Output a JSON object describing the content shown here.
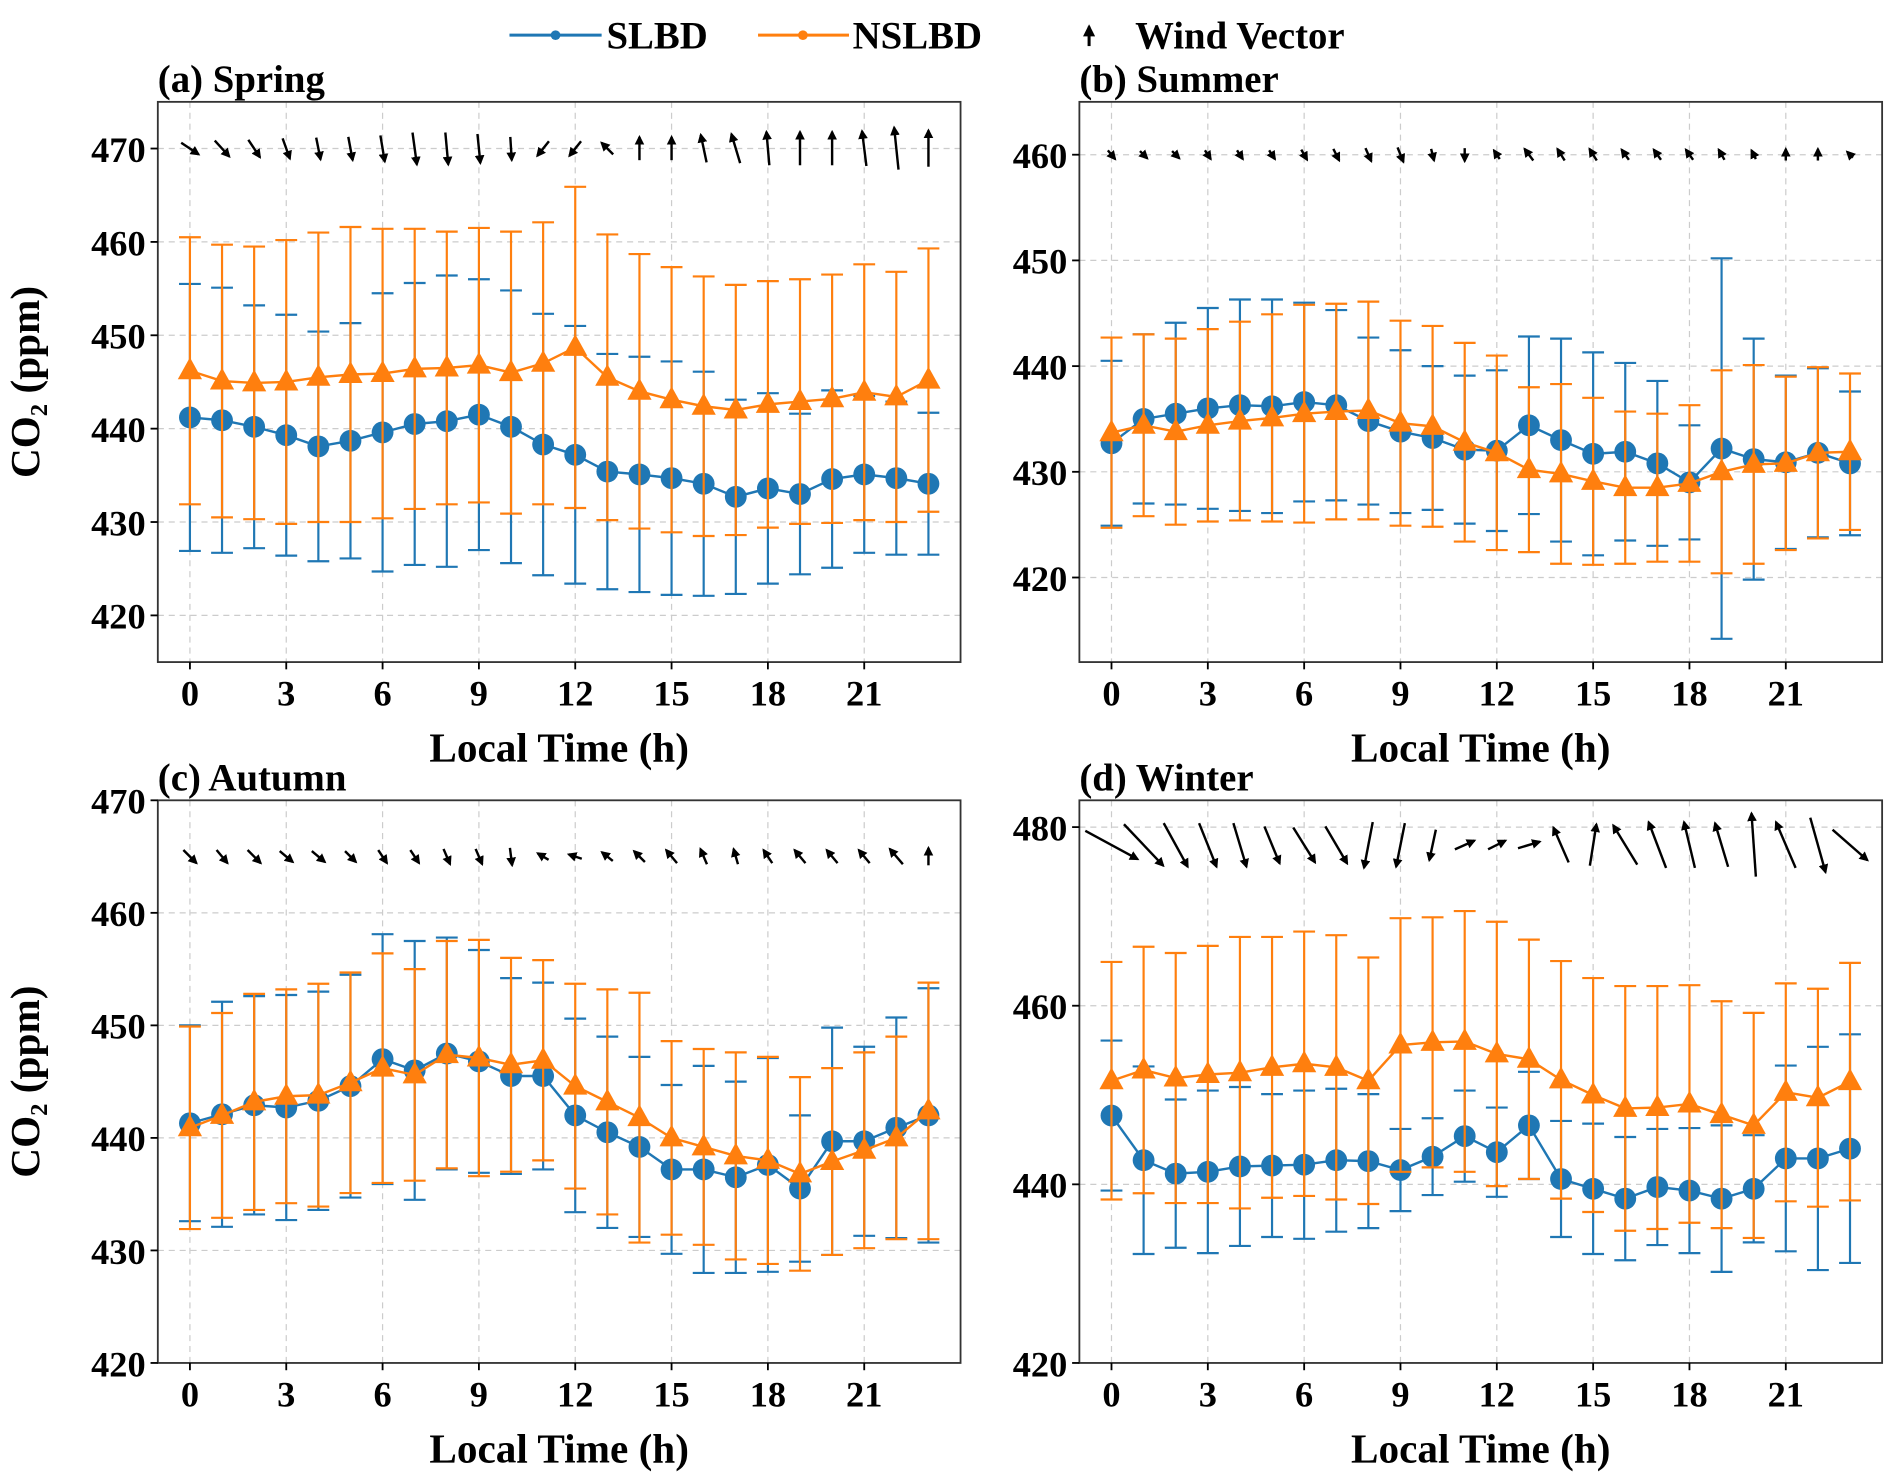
{
  "legend": {
    "items": [
      {
        "label": "SLBD",
        "color": "#1f77b4",
        "marker": "circle"
      },
      {
        "label": "NSLBD",
        "color": "#ff7f0e",
        "marker": "triangle"
      },
      {
        "label": "Wind Vector",
        "color": "#000000",
        "marker": "arrow"
      }
    ],
    "placement": "top-center"
  },
  "chart_data": [
    {
      "type": "line",
      "title": "(a) Spring",
      "xlabel": "Local Time (h)",
      "ylabel": "CO₂ (ppm)",
      "xticks": [
        0,
        3,
        6,
        9,
        12,
        15,
        18,
        21
      ],
      "yticks": [
        420,
        430,
        440,
        450,
        460,
        470
      ],
      "ylim": [
        415,
        475
      ],
      "xlim": [
        -1,
        24
      ],
      "grid": true,
      "x": [
        0,
        1,
        2,
        3,
        4,
        5,
        6,
        7,
        8,
        9,
        10,
        11,
        12,
        13,
        14,
        15,
        16,
        17,
        18,
        19,
        20,
        21,
        22,
        23
      ],
      "series": [
        {
          "name": "SLBD",
          "values": [
            441.2,
            440.9,
            440.2,
            439.3,
            438.1,
            438.7,
            439.6,
            440.5,
            440.8,
            441.5,
            440.2,
            438.3,
            437.2,
            435.4,
            435.1,
            434.7,
            434.1,
            432.7,
            433.6,
            433.0,
            434.6,
            435.1,
            434.7,
            434.1
          ],
          "err": [
            14.3,
            14.2,
            13.0,
            12.9,
            12.3,
            12.6,
            14.9,
            15.1,
            15.6,
            14.5,
            14.6,
            14.0,
            13.8,
            12.6,
            12.6,
            12.5,
            12.0,
            10.4,
            10.2,
            8.6,
            9.5,
            8.4,
            8.2,
            7.6
          ]
        },
        {
          "name": "NSLBD",
          "values": [
            446.2,
            445.1,
            444.9,
            445.0,
            445.5,
            445.8,
            445.9,
            446.4,
            446.5,
            446.8,
            446.0,
            447.0,
            448.7,
            445.5,
            444.0,
            443.1,
            442.4,
            442.0,
            442.6,
            442.9,
            443.2,
            443.9,
            443.4,
            445.2
          ],
          "err": [
            14.3,
            14.6,
            14.6,
            15.2,
            15.5,
            15.8,
            15.5,
            15.0,
            14.6,
            14.7,
            15.1,
            15.1,
            17.2,
            15.3,
            14.7,
            14.2,
            13.9,
            13.4,
            13.2,
            13.1,
            13.3,
            13.7,
            13.4,
            14.1
          ]
        }
      ],
      "wind": [
        [
          1.2,
          -0.8
        ],
        [
          1.0,
          -1.1
        ],
        [
          0.8,
          -1.2
        ],
        [
          0.5,
          -1.4
        ],
        [
          0.3,
          -1.5
        ],
        [
          0.3,
          -1.6
        ],
        [
          0.3,
          -1.8
        ],
        [
          0.3,
          -2.2
        ],
        [
          0.2,
          -2.2
        ],
        [
          0.2,
          -2.0
        ],
        [
          0.1,
          -1.6
        ],
        [
          -0.8,
          -1.0
        ],
        [
          -0.8,
          -1.0
        ],
        [
          -0.8,
          0.8
        ],
        [
          0,
          1.6
        ],
        [
          0,
          1.6
        ],
        [
          -0.4,
          1.9
        ],
        [
          -0.6,
          2.0
        ],
        [
          -0.2,
          2.3
        ],
        [
          0,
          2.3
        ],
        [
          0,
          2.3
        ],
        [
          -0.3,
          2.4
        ],
        [
          -0.3,
          2.9
        ],
        [
          0,
          2.5
        ]
      ]
    },
    {
      "type": "line",
      "title": "(b) Summer",
      "xlabel": "Local Time (h)",
      "ylabel": "",
      "xticks": [
        0,
        3,
        6,
        9,
        12,
        15,
        18,
        21
      ],
      "yticks": [
        420,
        430,
        440,
        450,
        460
      ],
      "ylim": [
        412,
        465
      ],
      "xlim": [
        -1,
        24
      ],
      "grid": true,
      "x": [
        0,
        1,
        2,
        3,
        4,
        5,
        6,
        7,
        8,
        9,
        10,
        11,
        12,
        13,
        14,
        15,
        16,
        17,
        18,
        19,
        20,
        21,
        22,
        23
      ],
      "series": [
        {
          "name": "SLBD",
          "values": [
            432.7,
            435.0,
            435.5,
            436.0,
            436.3,
            436.2,
            436.6,
            436.3,
            434.8,
            433.8,
            433.2,
            432.1,
            432.0,
            434.4,
            433.0,
            431.7,
            431.9,
            430.8,
            429.0,
            432.2,
            431.2,
            430.9,
            431.8,
            430.8
          ],
          "err": [
            7.8,
            8.0,
            8.6,
            9.5,
            10.0,
            10.1,
            9.4,
            9.0,
            7.9,
            7.7,
            6.8,
            7.0,
            7.6,
            8.4,
            9.6,
            9.6,
            8.4,
            7.8,
            5.4,
            18.0,
            11.4,
            8.2,
            8.0,
            6.8
          ]
        },
        {
          "name": "NSLBD",
          "values": [
            433.7,
            434.4,
            433.8,
            434.4,
            434.8,
            435.1,
            435.5,
            435.7,
            435.8,
            434.6,
            434.3,
            432.8,
            431.8,
            430.2,
            429.8,
            429.1,
            428.5,
            428.5,
            428.9,
            430.0,
            430.7,
            430.8,
            431.8,
            431.9
          ],
          "err": [
            9.0,
            8.6,
            8.8,
            9.1,
            9.4,
            9.8,
            10.3,
            10.2,
            10.3,
            9.7,
            9.5,
            9.4,
            9.2,
            7.8,
            8.5,
            7.9,
            7.2,
            7.0,
            7.4,
            9.6,
            9.4,
            8.2,
            8.1,
            7.4
          ]
        }
      ],
      "wind": [
        [
          0.5,
          -0.6
        ],
        [
          0.5,
          -0.5
        ],
        [
          0.5,
          -0.5
        ],
        [
          0.4,
          -0.6
        ],
        [
          0.4,
          -0.6
        ],
        [
          0.4,
          -0.6
        ],
        [
          0.4,
          -0.7
        ],
        [
          0.4,
          -0.8
        ],
        [
          0.4,
          -0.9
        ],
        [
          0.4,
          -1.0
        ],
        [
          0.2,
          -0.8
        ],
        [
          0,
          -0.9
        ],
        [
          -0.4,
          0.6
        ],
        [
          -0.6,
          0.8
        ],
        [
          -0.5,
          0.8
        ],
        [
          -0.5,
          0.8
        ],
        [
          -0.5,
          0.7
        ],
        [
          -0.5,
          0.7
        ],
        [
          -0.5,
          0.7
        ],
        [
          -0.4,
          0.7
        ],
        [
          -0.3,
          0.6
        ],
        [
          0,
          0.8
        ],
        [
          0,
          0.8
        ],
        [
          -0.4,
          0.4
        ]
      ]
    },
    {
      "type": "line",
      "title": "(c) Autumn",
      "xlabel": "Local Time (h)",
      "ylabel": "CO₂ (ppm)",
      "xticks": [
        0,
        3,
        6,
        9,
        12,
        15,
        18,
        21
      ],
      "yticks": [
        420,
        430,
        440,
        450,
        460,
        470
      ],
      "ylim": [
        420,
        470
      ],
      "xlim": [
        -1,
        24
      ],
      "grid": true,
      "x": [
        0,
        1,
        2,
        3,
        4,
        5,
        6,
        7,
        8,
        9,
        10,
        11,
        12,
        13,
        14,
        15,
        16,
        17,
        18,
        19,
        20,
        21,
        22,
        23
      ],
      "series": [
        {
          "name": "SLBD",
          "values": [
            441.3,
            442.1,
            442.9,
            442.7,
            443.3,
            444.6,
            447.0,
            446.0,
            447.5,
            446.8,
            445.5,
            445.5,
            442.0,
            440.5,
            439.2,
            437.2,
            437.2,
            436.5,
            437.6,
            435.5,
            439.7,
            439.7,
            440.9,
            442.0
          ],
          "err": [
            8.7,
            10.0,
            9.7,
            10.0,
            9.7,
            9.9,
            11.1,
            11.5,
            10.3,
            9.9,
            8.7,
            8.3,
            8.6,
            8.5,
            8.0,
            7.5,
            9.2,
            8.5,
            9.5,
            6.5,
            10.1,
            8.4,
            9.8,
            11.3
          ]
        },
        {
          "name": "NSLBD",
          "values": [
            440.9,
            442.0,
            443.2,
            443.7,
            443.8,
            444.9,
            446.2,
            445.6,
            447.4,
            447.1,
            446.5,
            446.9,
            444.6,
            443.2,
            441.8,
            440.0,
            439.2,
            438.4,
            438.0,
            436.8,
            437.9,
            438.9,
            440.0,
            442.4
          ],
          "err": [
            9.0,
            9.1,
            9.6,
            9.5,
            9.9,
            9.8,
            10.2,
            9.4,
            10.1,
            10.5,
            9.5,
            8.9,
            9.1,
            10.0,
            11.1,
            8.6,
            8.7,
            9.2,
            9.2,
            8.6,
            8.3,
            8.7,
            9.0,
            11.4
          ]
        }
      ],
      "wind": [
        [
          0.6,
          -0.6
        ],
        [
          0.5,
          -0.6
        ],
        [
          0.6,
          -0.6
        ],
        [
          0.6,
          -0.5
        ],
        [
          0.6,
          -0.5
        ],
        [
          0.5,
          -0.5
        ],
        [
          0.4,
          -0.6
        ],
        [
          0.4,
          -0.6
        ],
        [
          0.3,
          -0.7
        ],
        [
          0.3,
          -0.7
        ],
        [
          0.1,
          -0.8
        ],
        [
          -0.5,
          0.3
        ],
        [
          -0.6,
          0.2
        ],
        [
          -0.5,
          0.4
        ],
        [
          -0.5,
          0.5
        ],
        [
          -0.5,
          0.6
        ],
        [
          -0.3,
          0.7
        ],
        [
          -0.2,
          0.7
        ],
        [
          -0.4,
          0.6
        ],
        [
          -0.5,
          0.6
        ],
        [
          -0.5,
          0.6
        ],
        [
          -0.5,
          0.6
        ],
        [
          -0.6,
          0.7
        ],
        [
          0,
          0.8
        ]
      ]
    },
    {
      "type": "line",
      "title": "(d) Winter",
      "xlabel": "Local Time (h)",
      "ylabel": "",
      "xticks": [
        0,
        3,
        6,
        9,
        12,
        15,
        18,
        21
      ],
      "yticks": [
        420,
        440,
        460,
        480
      ],
      "ylim": [
        420,
        483
      ],
      "xlim": [
        -1,
        24
      ],
      "grid": true,
      "x": [
        0,
        1,
        2,
        3,
        4,
        5,
        6,
        7,
        8,
        9,
        10,
        11,
        12,
        13,
        14,
        15,
        16,
        17,
        18,
        19,
        20,
        21,
        22,
        23
      ],
      "series": [
        {
          "name": "SLBD",
          "values": [
            447.7,
            442.7,
            441.2,
            441.4,
            442.0,
            442.1,
            442.2,
            442.7,
            442.6,
            441.6,
            443.1,
            445.4,
            443.6,
            446.6,
            440.6,
            439.5,
            438.4,
            439.7,
            439.3,
            438.4,
            439.5,
            442.9,
            442.9,
            444.0
          ],
          "err": [
            8.4,
            10.5,
            8.3,
            9.1,
            8.9,
            8.0,
            8.3,
            8.0,
            7.5,
            4.6,
            4.3,
            5.1,
            5.0,
            6.0,
            6.5,
            7.3,
            6.9,
            6.5,
            7.0,
            8.2,
            6.0,
            10.4,
            12.5,
            12.8
          ]
        },
        {
          "name": "NSLBD",
          "values": [
            451.6,
            452.8,
            451.9,
            452.3,
            452.5,
            453.1,
            453.5,
            453.1,
            451.6,
            455.6,
            455.9,
            456.0,
            454.6,
            454.0,
            451.7,
            450.0,
            448.5,
            448.6,
            449.0,
            447.8,
            446.6,
            450.3,
            449.7,
            451.5
          ],
          "err": [
            13.3,
            13.8,
            14.0,
            14.4,
            15.2,
            14.6,
            14.8,
            14.8,
            13.8,
            14.2,
            14.0,
            14.6,
            14.8,
            13.4,
            13.3,
            13.1,
            13.7,
            13.6,
            13.3,
            12.7,
            12.6,
            12.2,
            12.2,
            13.3
          ]
        }
      ],
      "wind": [
        [
          2.4,
          -1.3
        ],
        [
          1.8,
          -1.9
        ],
        [
          1.1,
          -2.0
        ],
        [
          0.8,
          -2.0
        ],
        [
          0.6,
          -2.0
        ],
        [
          0.7,
          -1.7
        ],
        [
          1.0,
          -1.6
        ],
        [
          1.0,
          -1.7
        ],
        [
          -0.4,
          -2.1
        ],
        [
          -0.4,
          -2.0
        ],
        [
          -0.3,
          -1.4
        ],
        [
          0.9,
          0.4
        ],
        [
          0.8,
          0.4
        ],
        [
          1.0,
          0.3
        ],
        [
          -0.7,
          1.6
        ],
        [
          0.3,
          1.9
        ],
        [
          -1.1,
          1.8
        ],
        [
          -0.8,
          2.1
        ],
        [
          -0.5,
          2.1
        ],
        [
          -0.6,
          2.0
        ],
        [
          -0.2,
          2.9
        ],
        [
          -0.9,
          2.1
        ],
        [
          0.7,
          -2.5
        ],
        [
          1.6,
          -1.4
        ]
      ]
    }
  ]
}
